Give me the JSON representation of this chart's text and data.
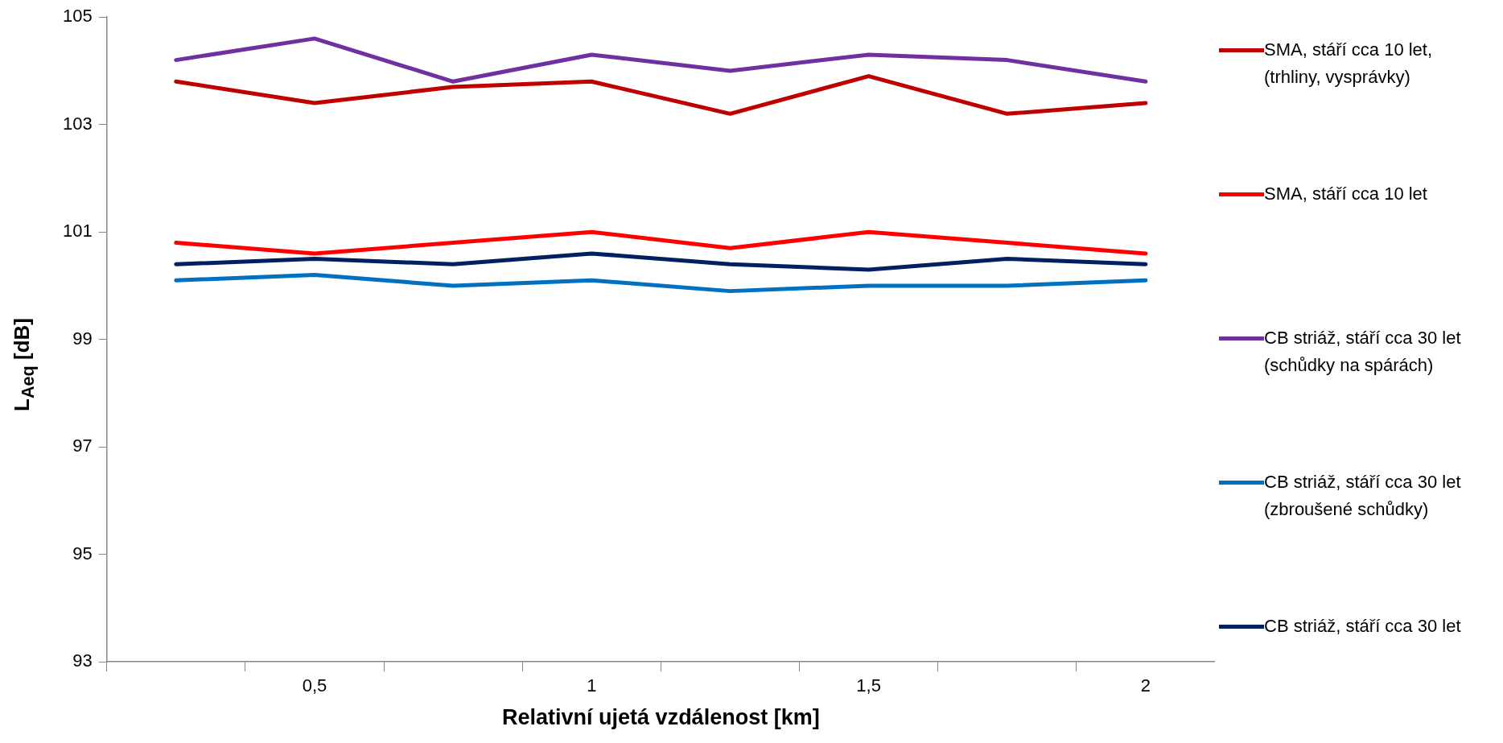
{
  "chart_data": {
    "type": "line",
    "xlabel": "Relativní ujetá vzdálenost [km]",
    "ylabel": "L$_{Aeq}$ [dB]",
    "categories": [
      null,
      "0,5",
      null,
      "1",
      null,
      "1,5",
      null,
      "2"
    ],
    "series": [
      {
        "name": "SMA, stáří cca 10 let, (trhliny, vysprávky)",
        "color": "#c00000",
        "values": [
          103.8,
          103.4,
          103.7,
          103.8,
          103.2,
          103.9,
          103.2,
          103.4
        ]
      },
      {
        "name": "SMA, stáří cca 10 let",
        "color": "#ff0000",
        "values": [
          100.8,
          100.6,
          100.8,
          101.0,
          100.7,
          101.0,
          100.8,
          100.6
        ]
      },
      {
        "name": "CB striáž, stáří cca 30 let (schůdky na spárách)",
        "color": "#7030a0",
        "values": [
          104.2,
          104.6,
          103.8,
          104.3,
          104.0,
          104.3,
          104.2,
          103.8
        ]
      },
      {
        "name": "CB striáž, stáří cca 30 let (zbroušené schůdky)",
        "color": "#0070c0",
        "values": [
          100.1,
          100.2,
          100.0,
          100.1,
          99.9,
          100.0,
          100.0,
          100.1
        ]
      },
      {
        "name": "CB striáž, stáří cca 30 let",
        "color": "#002060",
        "values": [
          100.4,
          100.5,
          100.4,
          100.6,
          100.4,
          100.3,
          100.5,
          100.4
        ]
      }
    ],
    "ylim": [
      93,
      105
    ],
    "yticks": [
      93,
      95,
      97,
      99,
      101,
      103,
      105
    ],
    "grid": false,
    "legend": "right",
    "marker": "none",
    "line_style": "solid"
  }
}
